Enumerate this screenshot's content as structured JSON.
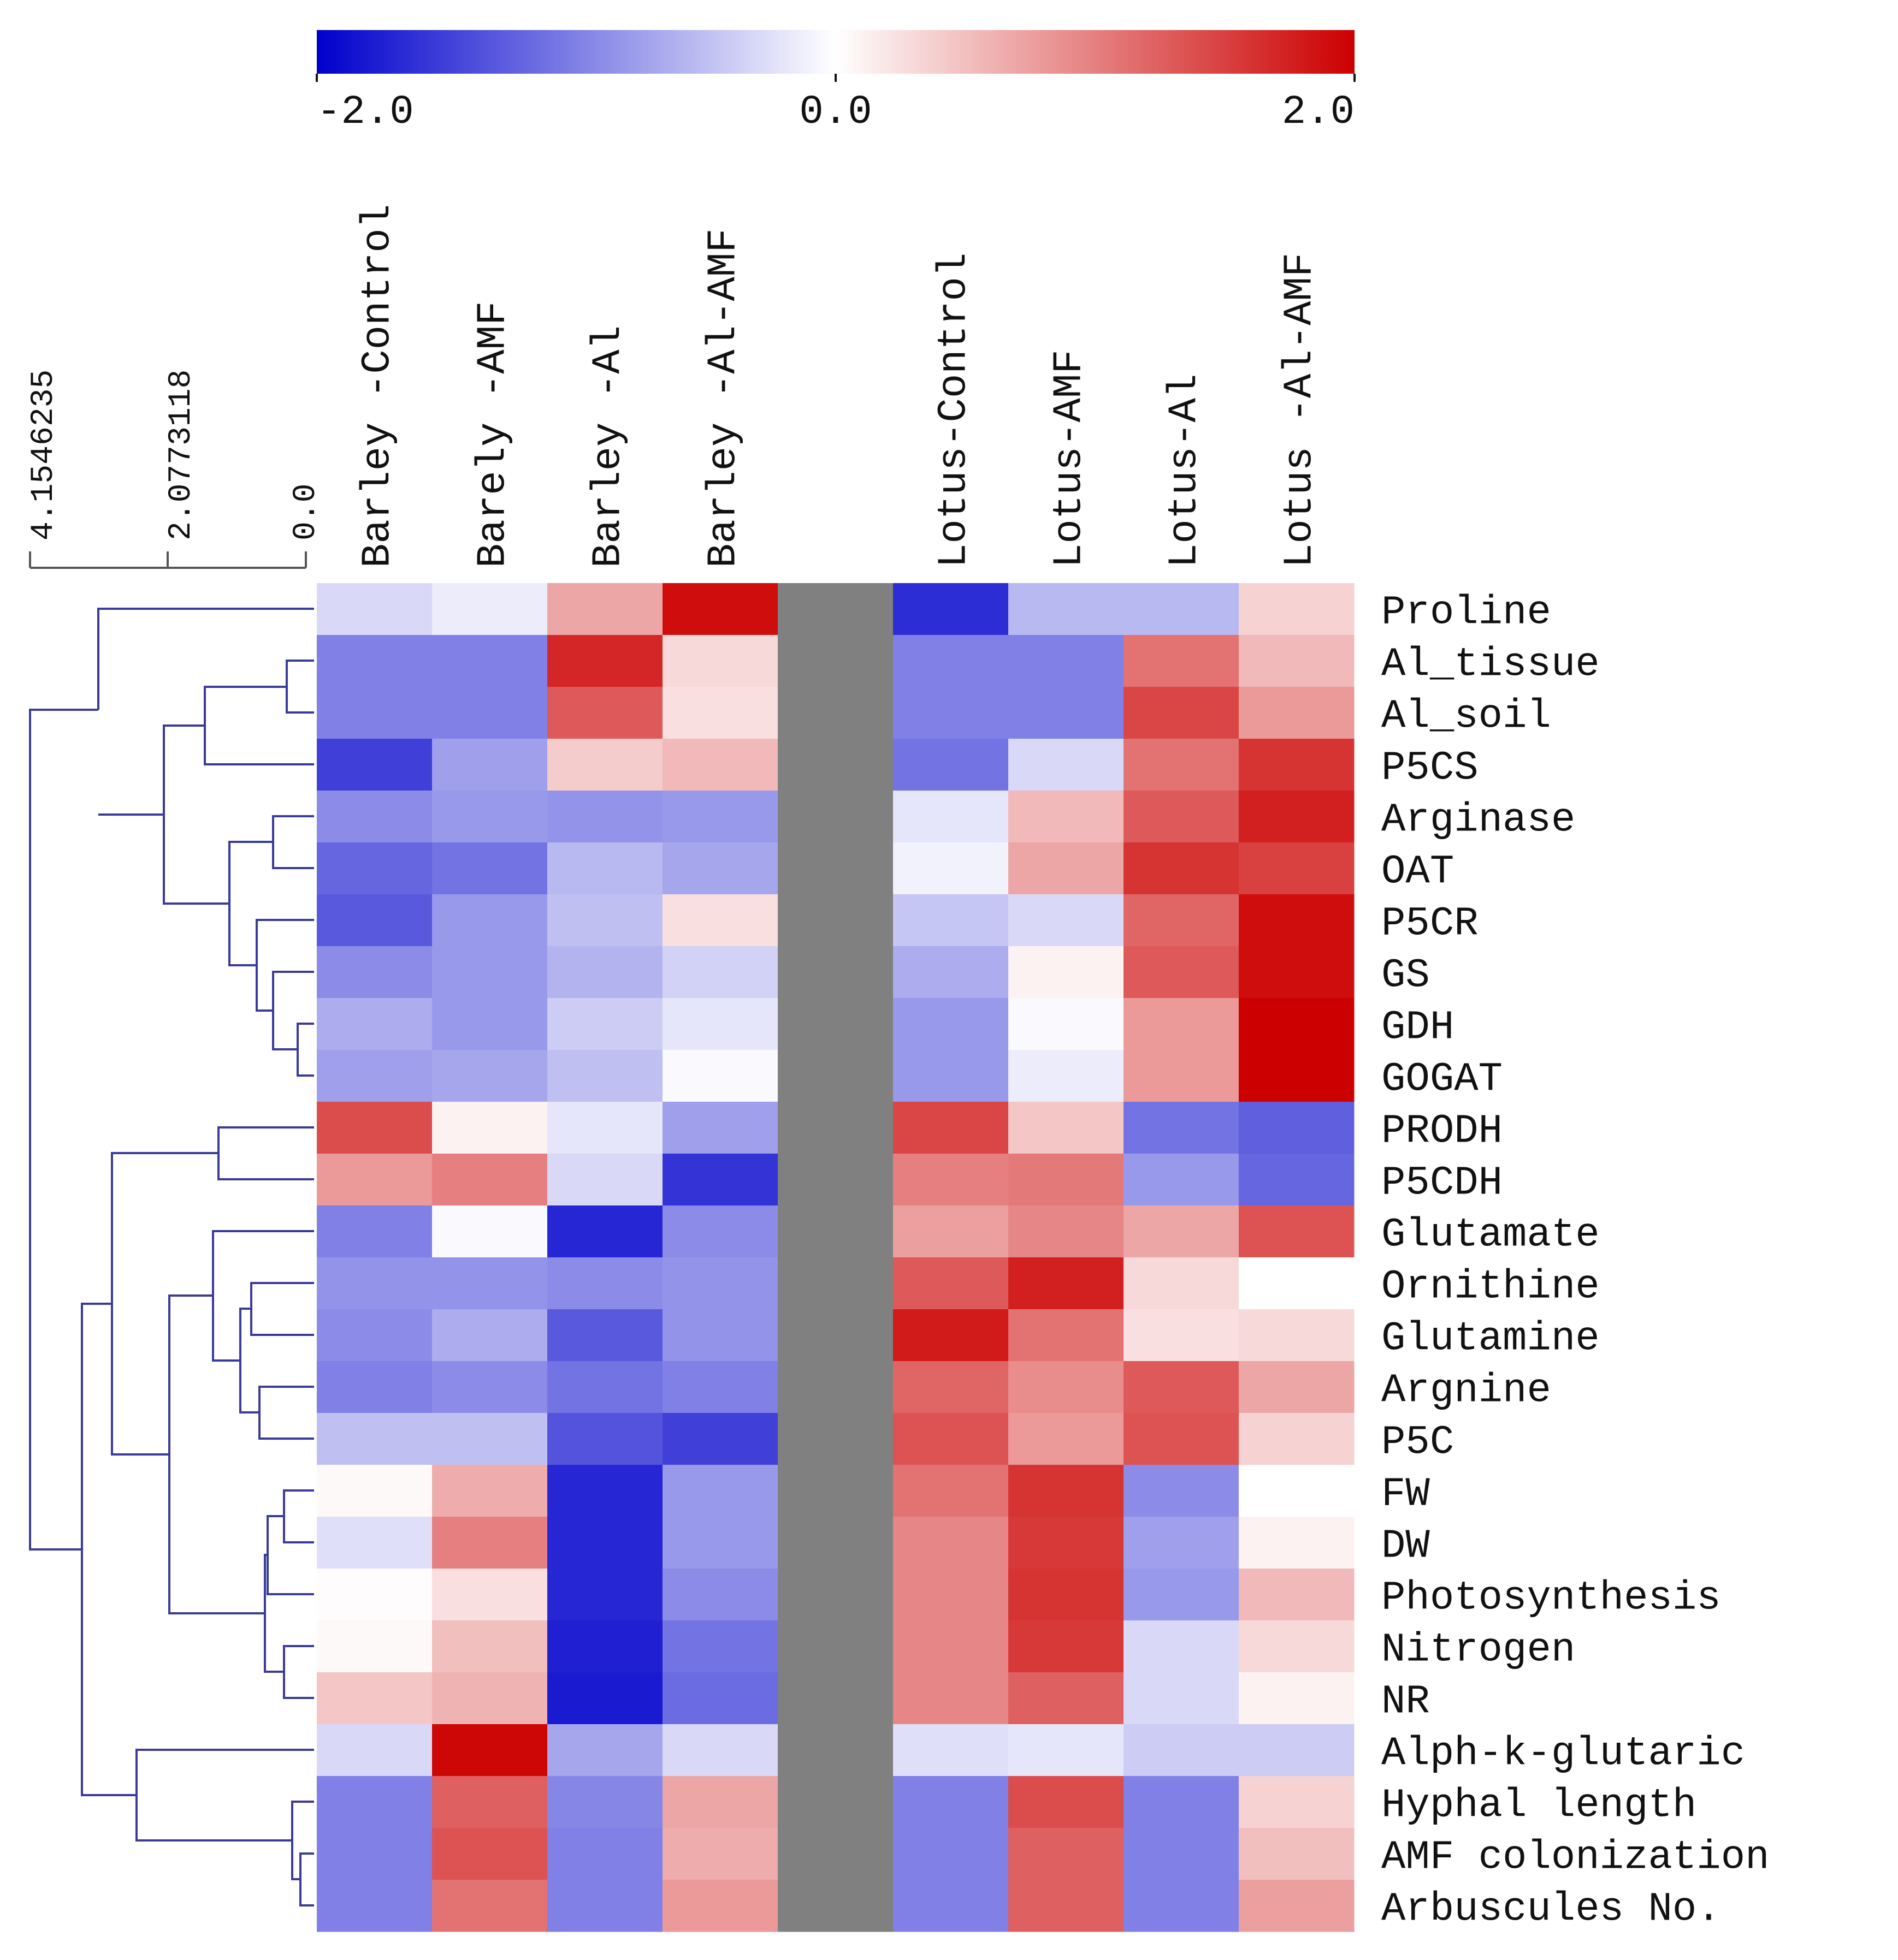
{
  "chart_data": {
    "type": "heatmap",
    "title": "",
    "color_scale": {
      "min": -2.0,
      "max": 2.0,
      "tick_labels": [
        "-2.0",
        "0.0",
        "2.0"
      ],
      "min_color": "#0000cc",
      "mid_color": "#ffffff",
      "max_color": "#cc0000"
    },
    "missing_color": "#808080",
    "dendrogram": {
      "color": "#3a3a9a",
      "distance_labels": [
        "4.1546235",
        "2.0773118",
        "0.0"
      ]
    },
    "columns": [
      "Barley -Control",
      "Barely -AMF",
      "Barley -Al",
      "Barley -Al-AMF",
      "",
      "Lotus-Control",
      "Lotus-AMF",
      "Lotus-Al",
      "Lotus -Al-AMF"
    ],
    "rows": [
      "Proline",
      "Al_tissue",
      "Al_soil",
      "P5CS",
      "Arginase",
      "OAT",
      "P5CR",
      "GS",
      "GDH",
      "GOGAT",
      "PRODH",
      "P5CDH",
      "Glutamate",
      "Ornithine",
      "Glutamine",
      "Argnine",
      "P5C",
      "FW",
      "DW",
      "Photosynthesis",
      "Nitrogen",
      "NR",
      "Alph-k-glutaric",
      "Hyphal length",
      "AMF colonization",
      "Arbuscules No."
    ],
    "values": [
      [
        -0.3,
        -0.15,
        0.7,
        1.9,
        null,
        -1.65,
        -0.55,
        -0.55,
        0.35
      ],
      [
        -1.0,
        -1.0,
        1.7,
        0.3,
        null,
        -1.0,
        -1.0,
        1.1,
        0.55
      ],
      [
        -1.0,
        -1.0,
        1.3,
        0.25,
        null,
        -1.0,
        -1.0,
        1.45,
        0.8
      ],
      [
        -1.5,
        -0.75,
        0.4,
        0.55,
        null,
        -1.1,
        -0.3,
        1.1,
        1.6
      ],
      [
        -0.9,
        -0.8,
        -0.85,
        -0.8,
        null,
        -0.2,
        0.55,
        1.3,
        1.75
      ],
      [
        -1.2,
        -1.1,
        -0.55,
        -0.7,
        null,
        -0.1,
        0.7,
        1.6,
        1.5
      ],
      [
        -1.3,
        -0.8,
        -0.5,
        0.25,
        null,
        -0.45,
        -0.3,
        1.2,
        1.9
      ],
      [
        -0.9,
        -0.8,
        -0.6,
        -0.35,
        null,
        -0.65,
        0.1,
        1.3,
        1.9
      ],
      [
        -0.65,
        -0.8,
        -0.4,
        -0.2,
        null,
        -0.8,
        -0.05,
        0.8,
        2.0
      ],
      [
        -0.75,
        -0.7,
        -0.5,
        -0.05,
        null,
        -0.8,
        -0.15,
        0.8,
        2.0
      ],
      [
        1.4,
        0.1,
        -0.2,
        -0.75,
        null,
        1.45,
        0.45,
        -1.1,
        -1.25
      ],
      [
        0.8,
        1.0,
        -0.3,
        -1.6,
        null,
        1.0,
        1.05,
        -0.8,
        -1.2
      ],
      [
        -1.0,
        -0.05,
        -1.7,
        -0.9,
        null,
        0.75,
        0.95,
        0.7,
        1.35
      ],
      [
        -0.85,
        -0.85,
        -0.9,
        -0.85,
        null,
        1.3,
        1.75,
        0.3,
        0.0
      ],
      [
        -0.9,
        -0.65,
        -1.3,
        -0.85,
        null,
        1.8,
        1.1,
        0.25,
        0.3
      ],
      [
        -1.0,
        -0.9,
        -1.1,
        -1.0,
        null,
        1.2,
        0.9,
        1.3,
        0.7
      ],
      [
        -0.5,
        -0.5,
        -1.35,
        -1.5,
        null,
        1.35,
        0.8,
        1.35,
        0.35
      ],
      [
        0.05,
        0.65,
        -1.7,
        -0.8,
        null,
        1.1,
        1.6,
        -0.9,
        0.0
      ],
      [
        -0.25,
        1.0,
        -1.7,
        -0.8,
        null,
        0.95,
        1.55,
        -0.75,
        0.1
      ],
      [
        0.02,
        0.25,
        -1.7,
        -0.9,
        null,
        0.95,
        1.6,
        -0.8,
        0.55
      ],
      [
        0.05,
        0.5,
        -1.75,
        -1.1,
        null,
        0.95,
        1.55,
        -0.3,
        0.3
      ],
      [
        0.45,
        0.6,
        -1.8,
        -1.15,
        null,
        0.95,
        1.25,
        -0.3,
        0.1
      ],
      [
        -0.3,
        1.95,
        -0.7,
        -0.3,
        null,
        -0.25,
        -0.2,
        -0.4,
        -0.4
      ],
      [
        -1.0,
        1.25,
        -0.95,
        0.7,
        null,
        -1.0,
        1.4,
        -1.0,
        0.35
      ],
      [
        -1.0,
        1.35,
        -1.0,
        0.65,
        null,
        -1.0,
        1.25,
        -1.0,
        0.5
      ],
      [
        -1.0,
        1.1,
        -1.0,
        0.8,
        null,
        -1.0,
        1.25,
        -1.0,
        0.75
      ]
    ]
  }
}
